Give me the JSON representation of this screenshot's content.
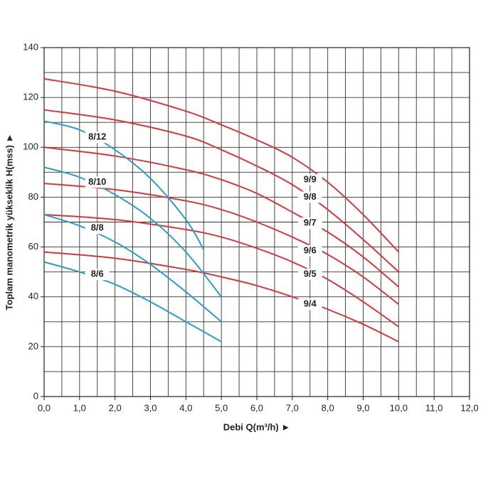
{
  "chart_data": {
    "type": "line",
    "xlabel": "Debi Q(m³/h) ►",
    "ylabel": "Toplam manometrik yükseklik H(mss) ►",
    "xlim": [
      0,
      12
    ],
    "ylim": [
      0,
      140
    ],
    "xticks": [
      {
        "value": 0,
        "label": "0,0"
      },
      {
        "value": 1,
        "label": "1,0"
      },
      {
        "value": 2,
        "label": "2,0"
      },
      {
        "value": 3,
        "label": "3,0"
      },
      {
        "value": 4,
        "label": "4,0"
      },
      {
        "value": 5,
        "label": "5,0"
      },
      {
        "value": 6,
        "label": "6,0"
      },
      {
        "value": 7,
        "label": "7,0"
      },
      {
        "value": 8,
        "label": "8,0"
      },
      {
        "value": 9,
        "label": "9,0"
      },
      {
        "value": 10,
        "label": "10,0"
      },
      {
        "value": 11,
        "label": "11,0"
      },
      {
        "value": 12,
        "label": "12,0"
      }
    ],
    "yticks": [
      0,
      20,
      40,
      60,
      80,
      100,
      120,
      140
    ],
    "xgrid": [
      0,
      0.5,
      1,
      1.5,
      2,
      2.5,
      3,
      3.5,
      4,
      4.5,
      5,
      5.5,
      6,
      6.5,
      7,
      7.5,
      8,
      8.5,
      9,
      9.5,
      10,
      10.5,
      11,
      11.5,
      12
    ],
    "ygrid": [
      0,
      10,
      20,
      30,
      40,
      50,
      60,
      70,
      80,
      90,
      100,
      110,
      120,
      130,
      140
    ],
    "grid": true,
    "series": [
      {
        "name": "9/9",
        "color": "#d9363e",
        "x": [
          0,
          2,
          4,
          5,
          6,
          7,
          8,
          9,
          10
        ],
        "values": [
          127.5,
          122.5,
          114.5,
          109,
          103,
          96,
          86,
          73,
          58
        ]
      },
      {
        "name": "9/8",
        "color": "#d9363e",
        "x": [
          0,
          2,
          4,
          5,
          6,
          7,
          8,
          9,
          10
        ],
        "values": [
          115,
          111,
          104.5,
          99,
          92.5,
          85,
          75,
          63,
          50
        ]
      },
      {
        "name": "9/7",
        "color": "#d9363e",
        "x": [
          0,
          2,
          4,
          5,
          6,
          7,
          8,
          9,
          10
        ],
        "values": [
          100,
          96.5,
          91,
          87,
          81.5,
          74,
          66,
          56,
          44
        ]
      },
      {
        "name": "9/6",
        "color": "#d9363e",
        "x": [
          0,
          2,
          4,
          5,
          6,
          7,
          8,
          9,
          10
        ],
        "values": [
          85.5,
          83,
          78.5,
          75,
          70,
          64,
          57,
          48,
          37
        ]
      },
      {
        "name": "9/5",
        "color": "#d9363e",
        "x": [
          0,
          2,
          4,
          5,
          6,
          7,
          8,
          9,
          10
        ],
        "values": [
          73,
          71,
          67,
          64,
          59.5,
          54,
          47,
          38,
          28
        ]
      },
      {
        "name": "9/4",
        "color": "#d9363e",
        "x": [
          0,
          2,
          4,
          5,
          6,
          7,
          8,
          9,
          10
        ],
        "values": [
          58,
          55.5,
          51,
          48,
          44.5,
          40,
          35,
          29,
          22
        ]
      },
      {
        "name": "8/12",
        "color": "#2a9fc9",
        "x": [
          0,
          1,
          2,
          3,
          4,
          4.5
        ],
        "values": [
          110.5,
          107,
          99,
          87.5,
          71,
          59
        ]
      },
      {
        "name": "8/10",
        "color": "#2a9fc9",
        "x": [
          0,
          1,
          2,
          3,
          4,
          5
        ],
        "values": [
          92,
          88,
          81,
          71.5,
          58,
          40
        ]
      },
      {
        "name": "8/8",
        "color": "#2a9fc9",
        "x": [
          0,
          1,
          2,
          3,
          4,
          5
        ],
        "values": [
          73,
          68.5,
          62,
          53,
          42,
          30
        ]
      },
      {
        "name": "8/6",
        "color": "#2a9fc9",
        "x": [
          0,
          1,
          2,
          3,
          4,
          5
        ],
        "values": [
          54,
          50,
          45,
          38,
          30,
          22
        ]
      }
    ]
  }
}
